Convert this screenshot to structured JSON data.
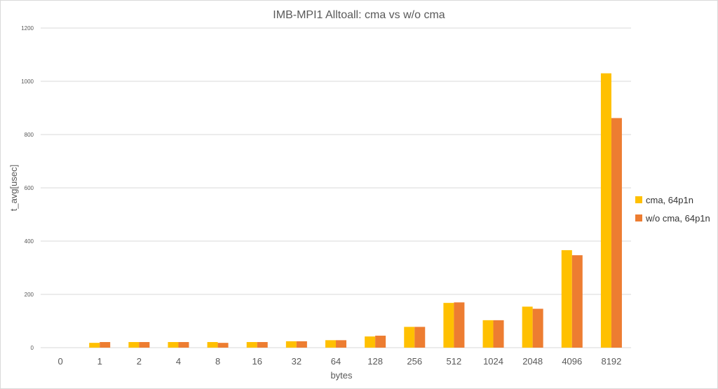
{
  "chart_data": {
    "type": "bar",
    "title": "IMB-MPI1 Alltoall: cma vs w/o cma",
    "xlabel": "bytes",
    "ylabel": "t_avg[usec]",
    "ylim": [
      0,
      1200
    ],
    "yticks": [
      "0",
      "200",
      "400",
      "600",
      "800",
      "1000",
      "1200"
    ],
    "grid": true,
    "legend_position": "right",
    "categories": [
      "0",
      "1",
      "2",
      "4",
      "8",
      "16",
      "32",
      "64",
      "128",
      "256",
      "512",
      "1024",
      "2048",
      "4096",
      "8192"
    ],
    "series": [
      {
        "name": "cma, 64p1n",
        "color": "#FFC000",
        "values": [
          0,
          18,
          21,
          21,
          21,
          21,
          24,
          28,
          42,
          78,
          168,
          103,
          154,
          366,
          1030
        ]
      },
      {
        "name": "w/o cma, 64p1n",
        "color": "#ED7D31",
        "values": [
          0,
          21,
          21,
          21,
          18,
          21,
          24,
          28,
          45,
          78,
          170,
          103,
          146,
          347,
          862
        ]
      }
    ]
  }
}
